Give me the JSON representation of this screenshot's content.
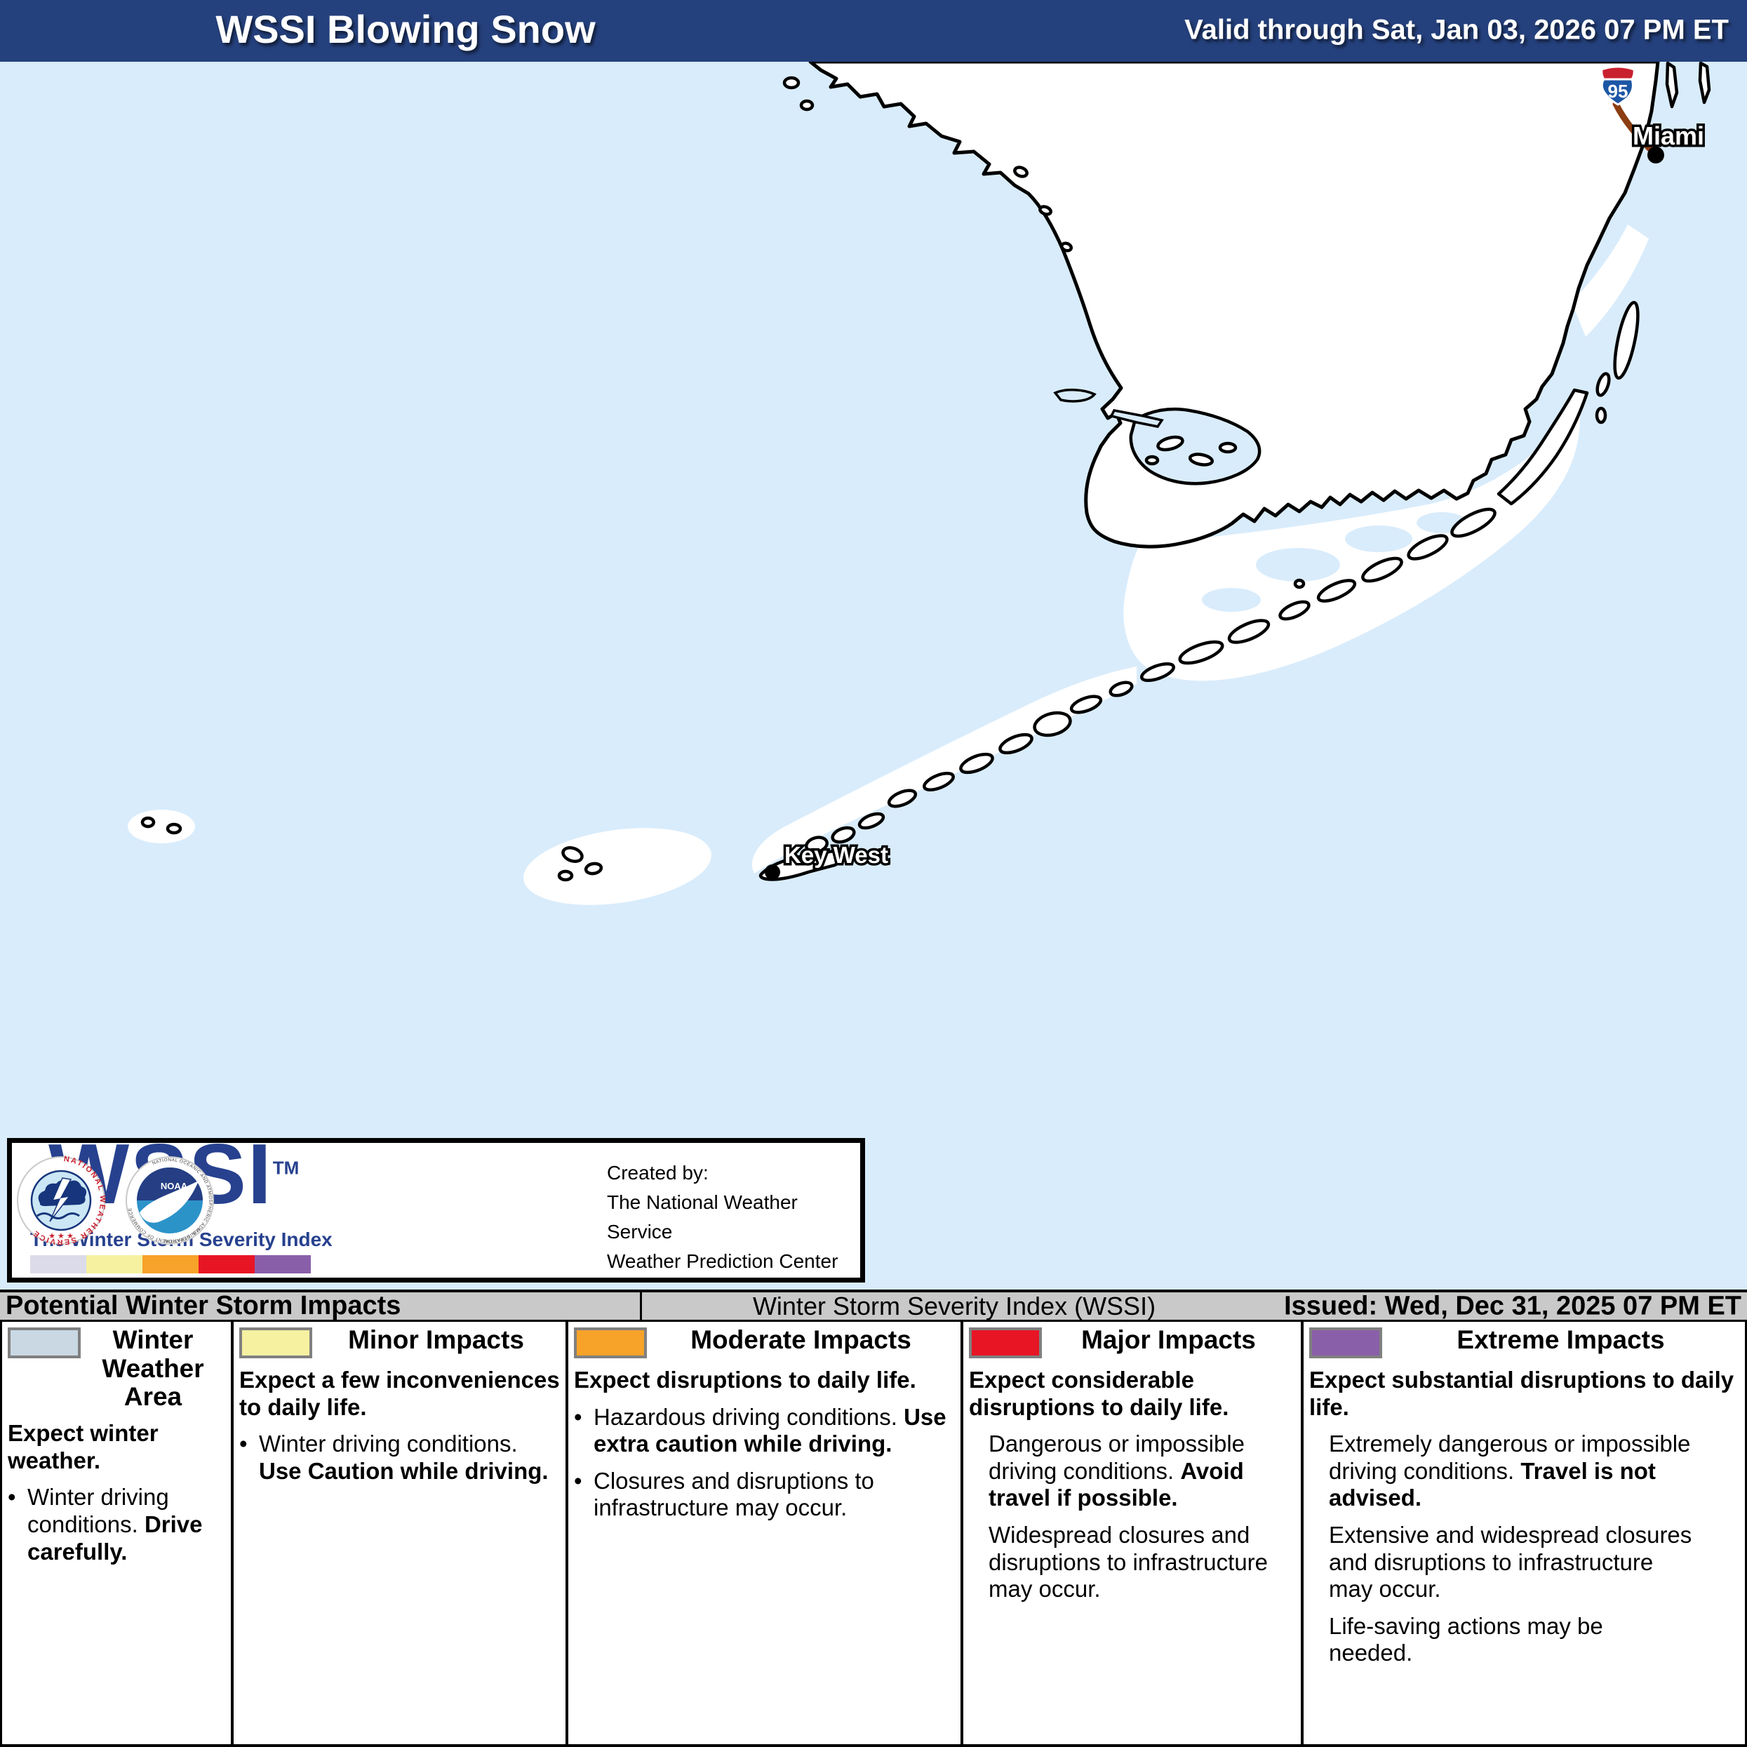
{
  "header": {
    "title": "WSSI Blowing Snow",
    "valid": "Valid through Sat, Jan 03, 2026 07 PM ET"
  },
  "colors": {
    "header_bg": "#25417D",
    "water": "#D9ECFB",
    "winter_weather": "#C9D8E3",
    "minor": "#F5F1A1",
    "moderate": "#F7A229",
    "major": "#E81524",
    "extreme": "#8A5FA9",
    "wssi_blue": "#27418F",
    "road_brown": "#8C3D12"
  },
  "map": {
    "labels": {
      "miami": "Miami",
      "key_west": "Key West"
    },
    "highway_shield": "95"
  },
  "logo_box": {
    "wordmark": "WSSI",
    "tm": "TM",
    "tagline": "The Winter Storm Severity Index",
    "severity_colors": [
      "#DCDBEA",
      "#F5F1A1",
      "#F7A229",
      "#E81524",
      "#8A5FA9"
    ],
    "nws_ring": "NATIONAL WEATHER SERVICE",
    "nws_stars": "★ ★ ★",
    "noaa_label": "NOAA",
    "noaa_ring_top": "NATIONAL OCEANIC AND ATMOSPHERIC ADMINISTRATION",
    "noaa_ring_bottom": "U.S. DEPARTMENT OF COMMERCE",
    "created_by": [
      "Created by:",
      "The National Weather Service",
      "Weather Prediction Center"
    ]
  },
  "impacts_bar": {
    "left": "Potential Winter Storm Impacts",
    "center": "Winter Storm Severity Index (WSSI)",
    "issued": "Issued: Wed, Dec 31, 2025 07 PM ET"
  },
  "legend": {
    "columns": [
      {
        "id": "winter-weather-area",
        "swatch": "#C9D8E3",
        "title": "Winter Weather Area",
        "intro": [
          {
            "t": "Expect winter weather.",
            "b": true
          }
        ],
        "items": [
          {
            "bullet": true,
            "segs": [
              {
                "t": "Winter driving conditions. ",
                "b": false
              },
              {
                "t": "Drive carefully.",
                "b": true
              }
            ]
          }
        ]
      },
      {
        "id": "minor-impacts",
        "swatch": "#F5F1A1",
        "title": "Minor Impacts",
        "intro": [
          {
            "t": "Expect a few inconveniences to daily life.",
            "b": true
          }
        ],
        "items": [
          {
            "bullet": true,
            "segs": [
              {
                "t": "Winter driving conditions. ",
                "b": false
              },
              {
                "t": "Use Caution while driving.",
                "b": true
              }
            ]
          }
        ]
      },
      {
        "id": "moderate-impacts",
        "swatch": "#F7A229",
        "title": "Moderate Impacts",
        "intro": [
          {
            "t": "Expect disruptions to daily life.",
            "b": true
          }
        ],
        "items": [
          {
            "bullet": true,
            "segs": [
              {
                "t": "Hazardous driving conditions. ",
                "b": false
              },
              {
                "t": "Use extra caution while driving.",
                "b": true
              }
            ]
          },
          {
            "bullet": true,
            "segs": [
              {
                "t": "Closures and disruptions to infrastructure may occur.",
                "b": false
              }
            ]
          }
        ]
      },
      {
        "id": "major-impacts",
        "swatch": "#E81524",
        "title": "Major Impacts",
        "intro": [
          {
            "t": "Expect considerable disruptions to daily life.",
            "b": true
          }
        ],
        "items": [
          {
            "bullet": false,
            "segs": [
              {
                "t": "Dangerous or impossible driving conditions. ",
                "b": false
              },
              {
                "t": "Avoid travel if possible.",
                "b": true
              }
            ]
          },
          {
            "bullet": false,
            "segs": [
              {
                "t": "Widespread closures and disruptions to infrastructure may occur.",
                "b": false
              }
            ]
          }
        ]
      },
      {
        "id": "extreme-impacts",
        "swatch": "#8A5FA9",
        "title": "Extreme Impacts",
        "intro": [
          {
            "t": "Expect substantial disruptions to daily life.",
            "b": true
          }
        ],
        "items": [
          {
            "bullet": false,
            "segs": [
              {
                "t": "Extremely dangerous or impossible driving conditions. ",
                "b": false
              },
              {
                "t": "Travel is not advised.",
                "b": true
              }
            ]
          },
          {
            "bullet": false,
            "segs": [
              {
                "t": "Extensive and widespread closures and disruptions to infrastructure may occur.",
                "b": false
              }
            ]
          },
          {
            "bullet": false,
            "segs": [
              {
                "t": "Life-saving actions may be needed.",
                "b": false
              }
            ]
          }
        ]
      }
    ]
  }
}
